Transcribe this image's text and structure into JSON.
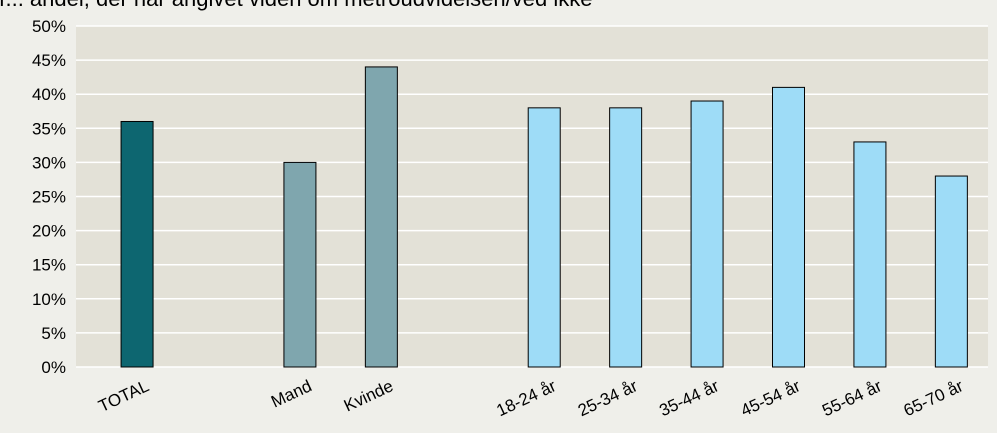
{
  "title_fragment": "igur... andel, der har angivet viden om metroudvidelsen/ved ikke",
  "chart_data": {
    "type": "bar",
    "title": "",
    "xlabel": "",
    "ylabel": "",
    "ylim": [
      0,
      50
    ],
    "y_ticks": [
      "0%",
      "5%",
      "10%",
      "15%",
      "20%",
      "25%",
      "30%",
      "35%",
      "40%",
      "45%",
      "50%"
    ],
    "grid": "horizontal",
    "legend": "none",
    "categories": [
      "TOTAL",
      "Mand",
      "Kvinde",
      "18-24 år",
      "25-34 år",
      "35-44 år",
      "45-54 år",
      "55-64 år",
      "65-70 år"
    ],
    "values": [
      36,
      30,
      44,
      38,
      38,
      39,
      41,
      33,
      28
    ],
    "groups": [
      "total",
      "gender",
      "gender",
      "age",
      "age",
      "age",
      "age",
      "age",
      "age"
    ],
    "colors": {
      "total": "#0d6670",
      "gender": "#7fa6ae",
      "age": "#9edcf7",
      "plot_bg": "#e3e1d7",
      "page_bg": "#efefea",
      "grid": "#ffffff"
    }
  }
}
